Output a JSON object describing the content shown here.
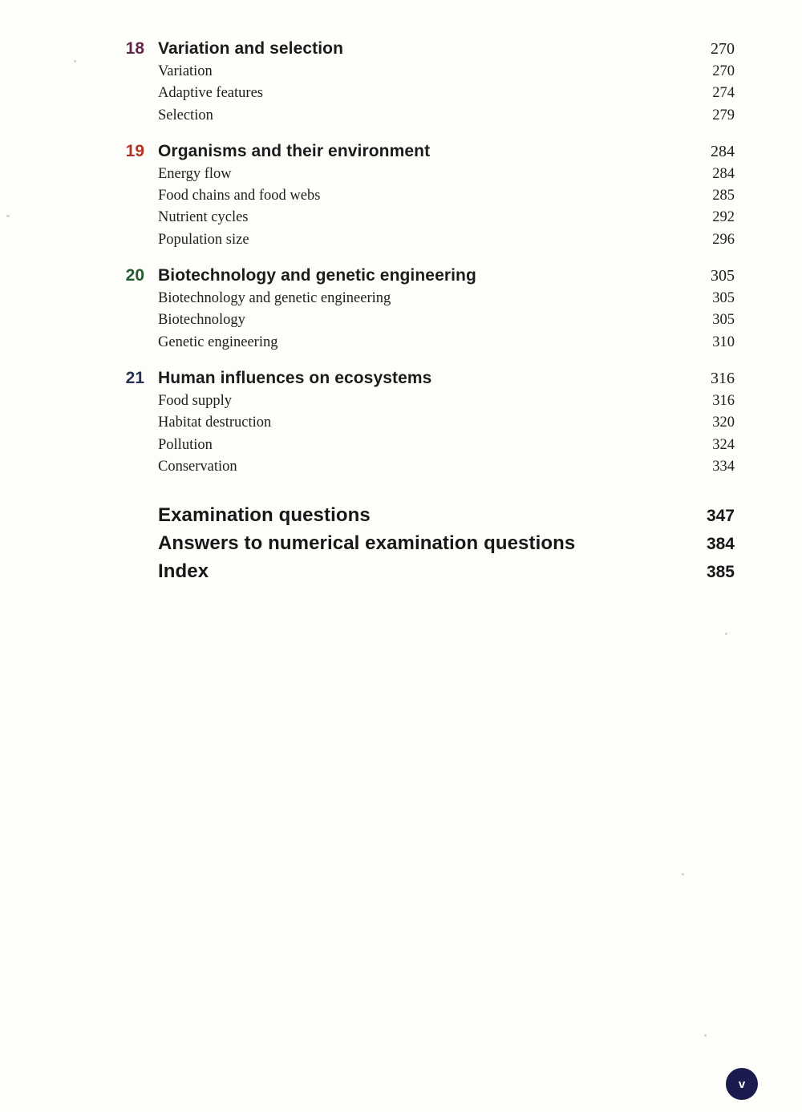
{
  "page": {
    "background": "#fdfdfa",
    "badge": {
      "label": "v",
      "color": "#1b1b4f"
    }
  },
  "toc": {
    "chapters": [
      {
        "number": "18",
        "number_color": "#63294a",
        "title": "Variation and selection",
        "page": "270",
        "sections": [
          {
            "title": "Variation",
            "page": "270"
          },
          {
            "title": "Adaptive features",
            "page": "274"
          },
          {
            "title": "Selection",
            "page": "279"
          }
        ]
      },
      {
        "number": "19",
        "number_color": "#b23228",
        "title": "Organisms and their environment",
        "page": "284",
        "sections": [
          {
            "title": "Energy flow",
            "page": "284"
          },
          {
            "title": "Food chains and food webs",
            "page": "285"
          },
          {
            "title": "Nutrient cycles",
            "page": "292"
          },
          {
            "title": "Population size",
            "page": "296"
          }
        ]
      },
      {
        "number": "20",
        "number_color": "#245b33",
        "title": "Biotechnology and genetic engineering",
        "page": "305",
        "sections": [
          {
            "title": "Biotechnology and genetic engineering",
            "page": "305"
          },
          {
            "title": "Biotechnology",
            "page": "305"
          },
          {
            "title": "Genetic engineering",
            "page": "310"
          }
        ]
      },
      {
        "number": "21",
        "number_color": "#26304f",
        "title": "Human influences on ecosystems",
        "page": "316",
        "sections": [
          {
            "title": "Food supply",
            "page": "316"
          },
          {
            "title": "Habitat destruction",
            "page": "320"
          },
          {
            "title": "Pollution",
            "page": "324"
          },
          {
            "title": "Conservation",
            "page": "334"
          }
        ]
      }
    ],
    "back_matter": [
      {
        "title": "Examination questions",
        "page": "347"
      },
      {
        "title": "Answers to numerical examination questions",
        "page": "384"
      },
      {
        "title": "Index",
        "page": "385"
      }
    ]
  }
}
